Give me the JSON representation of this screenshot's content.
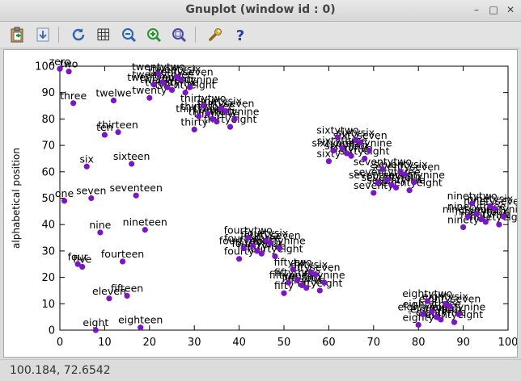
{
  "window": {
    "title": "Gnuplot (window id : 0)",
    "controls": {
      "minimize": "–",
      "maximize": "□",
      "close": "✕"
    }
  },
  "toolbar": {
    "items": [
      {
        "icon": "copy-clipboard-icon"
      },
      {
        "icon": "print-icon"
      },
      {
        "icon": "replot-icon"
      },
      {
        "icon": "grid-icon"
      },
      {
        "icon": "zoom-previous-icon"
      },
      {
        "icon": "zoom-next-icon"
      },
      {
        "icon": "autoscale-icon"
      },
      {
        "icon": "options-wrench-icon"
      },
      {
        "icon": "help-icon"
      }
    ]
  },
  "status": {
    "coordinates": "100.184,  72.6542"
  },
  "colors": {
    "point": "#7a16c6",
    "axis": "#000000",
    "background": "#ffffff"
  },
  "chart_data": {
    "type": "scatter",
    "title": "",
    "xlabel": "",
    "ylabel": "alphabetical position",
    "xlim": [
      0,
      100
    ],
    "ylim": [
      0,
      100
    ],
    "xticks": [
      0,
      10,
      20,
      30,
      40,
      50,
      60,
      70,
      80,
      90,
      100
    ],
    "yticks": [
      0,
      10,
      20,
      30,
      40,
      50,
      60,
      70,
      80,
      90,
      100
    ],
    "grid": false,
    "legend": "none",
    "points": [
      {
        "x": 0,
        "y": 99,
        "label": "zero"
      },
      {
        "x": 1,
        "y": 49,
        "label": "one"
      },
      {
        "x": 2,
        "y": 98,
        "label": "two"
      },
      {
        "x": 3,
        "y": 86,
        "label": "three"
      },
      {
        "x": 4,
        "y": 25,
        "label": "four"
      },
      {
        "x": 5,
        "y": 24,
        "label": "five"
      },
      {
        "x": 6,
        "y": 62,
        "label": "six"
      },
      {
        "x": 7,
        "y": 50,
        "label": "seven"
      },
      {
        "x": 8,
        "y": 0,
        "label": "eight"
      },
      {
        "x": 9,
        "y": 37,
        "label": "nine"
      },
      {
        "x": 10,
        "y": 74,
        "label": "ten"
      },
      {
        "x": 11,
        "y": 12,
        "label": "eleven"
      },
      {
        "x": 12,
        "y": 87,
        "label": "twelwe"
      },
      {
        "x": 13,
        "y": 75,
        "label": "thirteen"
      },
      {
        "x": 14,
        "y": 26,
        "label": "fourteen"
      },
      {
        "x": 15,
        "y": 13,
        "label": "fifteen"
      },
      {
        "x": 16,
        "y": 63,
        "label": "sixteen"
      },
      {
        "x": 17,
        "y": 51,
        "label": "seventeen"
      },
      {
        "x": 18,
        "y": 1,
        "label": "eighteen"
      },
      {
        "x": 19,
        "y": 38,
        "label": "nineteen"
      },
      {
        "x": 20,
        "y": 88,
        "label": "twenty"
      },
      {
        "x": 21,
        "y": 93,
        "label": "twentyone"
      },
      {
        "x": 22,
        "y": 97,
        "label": "twentytwo"
      },
      {
        "x": 23,
        "y": 94,
        "label": "twentythree"
      },
      {
        "x": 24,
        "y": 92,
        "label": "twentyfour"
      },
      {
        "x": 25,
        "y": 91,
        "label": "twentyfive"
      },
      {
        "x": 26,
        "y": 96,
        "label": "twentysix"
      },
      {
        "x": 27,
        "y": 95,
        "label": "twentyseven"
      },
      {
        "x": 28,
        "y": 90,
        "label": "twentyeight"
      },
      {
        "x": 29,
        "y": 92,
        "label": "twentynine"
      },
      {
        "x": 30,
        "y": 76,
        "label": "thirty"
      },
      {
        "x": 31,
        "y": 81,
        "label": "thirtyone"
      },
      {
        "x": 32,
        "y": 85,
        "label": "thirtytwo"
      },
      {
        "x": 33,
        "y": 82,
        "label": "thirtythree"
      },
      {
        "x": 34,
        "y": 80,
        "label": "thirtyfour"
      },
      {
        "x": 35,
        "y": 79,
        "label": "thirtyfive"
      },
      {
        "x": 36,
        "y": 84,
        "label": "thirtysix"
      },
      {
        "x": 37,
        "y": 83,
        "label": "thirtyseven"
      },
      {
        "x": 38,
        "y": 77,
        "label": "thirtyeight"
      },
      {
        "x": 39,
        "y": 80,
        "label": "thirtynine"
      },
      {
        "x": 40,
        "y": 27,
        "label": "fourty"
      },
      {
        "x": 41,
        "y": 31,
        "label": "fourtyone"
      },
      {
        "x": 42,
        "y": 35,
        "label": "fourtytwo"
      },
      {
        "x": 43,
        "y": 32,
        "label": "fourtythree"
      },
      {
        "x": 44,
        "y": 30,
        "label": "fourtyfour"
      },
      {
        "x": 45,
        "y": 29,
        "label": "fourtyfive"
      },
      {
        "x": 46,
        "y": 34,
        "label": "fourtysix"
      },
      {
        "x": 47,
        "y": 33,
        "label": "fourtyseven"
      },
      {
        "x": 48,
        "y": 28,
        "label": "fourtyeight"
      },
      {
        "x": 49,
        "y": 31,
        "label": "fourtynine"
      },
      {
        "x": 50,
        "y": 14,
        "label": "fifty"
      },
      {
        "x": 51,
        "y": 18,
        "label": "fiftyone"
      },
      {
        "x": 52,
        "y": 23,
        "label": "fiftytwo"
      },
      {
        "x": 53,
        "y": 19,
        "label": "fiftythree"
      },
      {
        "x": 54,
        "y": 17,
        "label": "fiftyfour"
      },
      {
        "x": 55,
        "y": 16,
        "label": "fiftyfive"
      },
      {
        "x": 56,
        "y": 22,
        "label": "fiftysix"
      },
      {
        "x": 57,
        "y": 21,
        "label": "fiftyseven"
      },
      {
        "x": 58,
        "y": 15,
        "label": "fiftyeight"
      },
      {
        "x": 59,
        "y": 18,
        "label": "fiftynine"
      },
      {
        "x": 60,
        "y": 64,
        "label": "sixty"
      },
      {
        "x": 61,
        "y": 68,
        "label": "sixtyone"
      },
      {
        "x": 62,
        "y": 73,
        "label": "sixtytwo"
      },
      {
        "x": 63,
        "y": 69,
        "label": "sixtythree"
      },
      {
        "x": 64,
        "y": 67,
        "label": "sixtyfour"
      },
      {
        "x": 65,
        "y": 66,
        "label": "sixtyfive"
      },
      {
        "x": 66,
        "y": 72,
        "label": "sixtysix"
      },
      {
        "x": 67,
        "y": 71,
        "label": "sixtyseven"
      },
      {
        "x": 68,
        "y": 65,
        "label": "sixtyeight"
      },
      {
        "x": 69,
        "y": 68,
        "label": "sixtynine"
      },
      {
        "x": 70,
        "y": 52,
        "label": "seventy"
      },
      {
        "x": 71,
        "y": 56,
        "label": "seventyone"
      },
      {
        "x": 72,
        "y": 61,
        "label": "seventytwo"
      },
      {
        "x": 73,
        "y": 57,
        "label": "seventythree"
      },
      {
        "x": 74,
        "y": 55,
        "label": "seventyfour"
      },
      {
        "x": 75,
        "y": 54,
        "label": "seventyfive"
      },
      {
        "x": 76,
        "y": 60,
        "label": "seventysix"
      },
      {
        "x": 77,
        "y": 59,
        "label": "seventyseven"
      },
      {
        "x": 78,
        "y": 53,
        "label": "seventyeight"
      },
      {
        "x": 79,
        "y": 56,
        "label": "seventynine"
      },
      {
        "x": 80,
        "y": 2,
        "label": "eighty"
      },
      {
        "x": 81,
        "y": 6,
        "label": "eightyone"
      },
      {
        "x": 82,
        "y": 11,
        "label": "eightytwo"
      },
      {
        "x": 83,
        "y": 7,
        "label": "eightythree"
      },
      {
        "x": 84,
        "y": 5,
        "label": "eightyfour"
      },
      {
        "x": 85,
        "y": 4,
        "label": "eightyfive"
      },
      {
        "x": 86,
        "y": 10,
        "label": "eightysix"
      },
      {
        "x": 87,
        "y": 9,
        "label": "eightyseven"
      },
      {
        "x": 88,
        "y": 3,
        "label": "eightyeight"
      },
      {
        "x": 89,
        "y": 6,
        "label": "eightynine"
      },
      {
        "x": 90,
        "y": 39,
        "label": "ninety"
      },
      {
        "x": 91,
        "y": 43,
        "label": "ninetyone"
      },
      {
        "x": 92,
        "y": 48,
        "label": "ninetytwo"
      },
      {
        "x": 93,
        "y": 44,
        "label": "ninetythree"
      },
      {
        "x": 94,
        "y": 42,
        "label": "ninetyfour"
      },
      {
        "x": 95,
        "y": 41,
        "label": "ninetyfive"
      },
      {
        "x": 96,
        "y": 47,
        "label": "ninetysix"
      },
      {
        "x": 97,
        "y": 46,
        "label": "ninetyseven"
      },
      {
        "x": 98,
        "y": 40,
        "label": "ninetyeight"
      },
      {
        "x": 99,
        "y": 43,
        "label": "ninetynine"
      }
    ]
  }
}
